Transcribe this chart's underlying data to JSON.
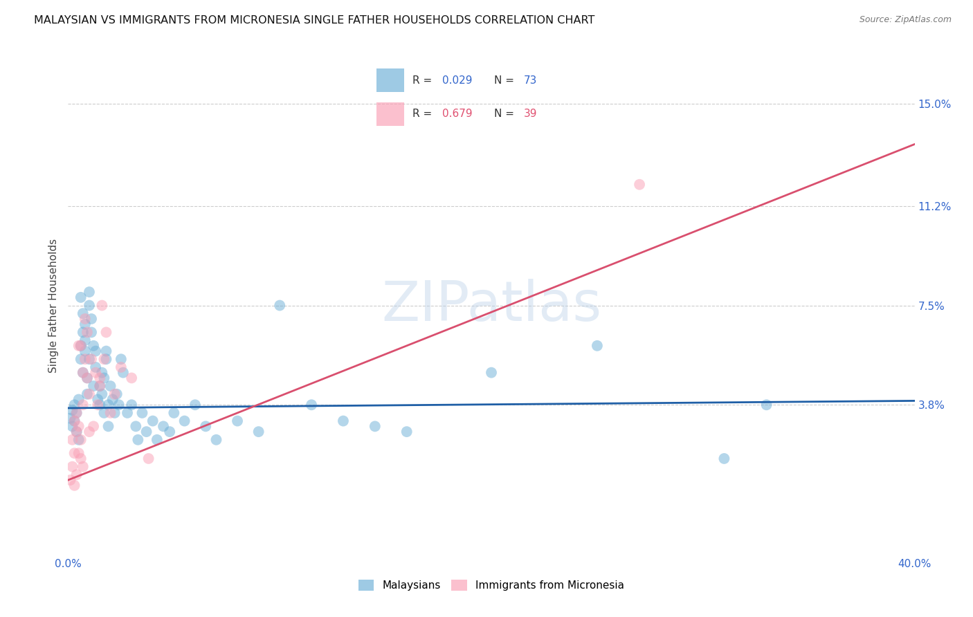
{
  "title": "MALAYSIAN VS IMMIGRANTS FROM MICRONESIA SINGLE FATHER HOUSEHOLDS CORRELATION CHART",
  "source": "Source: ZipAtlas.com",
  "ylabel": "Single Father Households",
  "ytick_labels": [
    "15.0%",
    "11.2%",
    "7.5%",
    "3.8%"
  ],
  "ytick_values": [
    0.15,
    0.112,
    0.075,
    0.038
  ],
  "xlim": [
    0.0,
    0.4
  ],
  "ylim": [
    -0.018,
    0.168
  ],
  "watermark": "ZIPatlas",
  "blue_color": "#6baed6",
  "pink_color": "#fa9fb5",
  "blue_line_color": "#1f5fa6",
  "pink_line_color": "#d94f6e",
  "blue_line_x": [
    0.0,
    0.4
  ],
  "blue_line_y": [
    0.0368,
    0.0395
  ],
  "pink_line_x": [
    0.0,
    0.4
  ],
  "pink_line_y": [
    0.01,
    0.135
  ],
  "blue_scatter": [
    [
      0.001,
      0.033
    ],
    [
      0.002,
      0.036
    ],
    [
      0.002,
      0.03
    ],
    [
      0.003,
      0.038
    ],
    [
      0.003,
      0.032
    ],
    [
      0.004,
      0.035
    ],
    [
      0.004,
      0.028
    ],
    [
      0.005,
      0.04
    ],
    [
      0.005,
      0.025
    ],
    [
      0.006,
      0.055
    ],
    [
      0.006,
      0.06
    ],
    [
      0.006,
      0.078
    ],
    [
      0.007,
      0.065
    ],
    [
      0.007,
      0.072
    ],
    [
      0.007,
      0.05
    ],
    [
      0.008,
      0.068
    ],
    [
      0.008,
      0.058
    ],
    [
      0.008,
      0.062
    ],
    [
      0.009,
      0.048
    ],
    [
      0.009,
      0.042
    ],
    [
      0.01,
      0.08
    ],
    [
      0.01,
      0.075
    ],
    [
      0.01,
      0.055
    ],
    [
      0.011,
      0.07
    ],
    [
      0.011,
      0.065
    ],
    [
      0.012,
      0.06
    ],
    [
      0.012,
      0.045
    ],
    [
      0.013,
      0.052
    ],
    [
      0.013,
      0.058
    ],
    [
      0.014,
      0.04
    ],
    [
      0.015,
      0.038
    ],
    [
      0.015,
      0.045
    ],
    [
      0.016,
      0.05
    ],
    [
      0.016,
      0.042
    ],
    [
      0.017,
      0.048
    ],
    [
      0.017,
      0.035
    ],
    [
      0.018,
      0.055
    ],
    [
      0.018,
      0.058
    ],
    [
      0.019,
      0.03
    ],
    [
      0.019,
      0.038
    ],
    [
      0.02,
      0.045
    ],
    [
      0.021,
      0.04
    ],
    [
      0.022,
      0.035
    ],
    [
      0.023,
      0.042
    ],
    [
      0.024,
      0.038
    ],
    [
      0.025,
      0.055
    ],
    [
      0.026,
      0.05
    ],
    [
      0.028,
      0.035
    ],
    [
      0.03,
      0.038
    ],
    [
      0.032,
      0.03
    ],
    [
      0.033,
      0.025
    ],
    [
      0.035,
      0.035
    ],
    [
      0.037,
      0.028
    ],
    [
      0.04,
      0.032
    ],
    [
      0.042,
      0.025
    ],
    [
      0.045,
      0.03
    ],
    [
      0.048,
      0.028
    ],
    [
      0.05,
      0.035
    ],
    [
      0.055,
      0.032
    ],
    [
      0.06,
      0.038
    ],
    [
      0.065,
      0.03
    ],
    [
      0.07,
      0.025
    ],
    [
      0.08,
      0.032
    ],
    [
      0.09,
      0.028
    ],
    [
      0.1,
      0.075
    ],
    [
      0.115,
      0.038
    ],
    [
      0.13,
      0.032
    ],
    [
      0.145,
      0.03
    ],
    [
      0.16,
      0.028
    ],
    [
      0.2,
      0.05
    ],
    [
      0.25,
      0.06
    ],
    [
      0.31,
      0.018
    ],
    [
      0.33,
      0.038
    ]
  ],
  "pink_scatter": [
    [
      0.001,
      0.01
    ],
    [
      0.002,
      0.015
    ],
    [
      0.002,
      0.025
    ],
    [
      0.003,
      0.02
    ],
    [
      0.003,
      0.032
    ],
    [
      0.003,
      0.008
    ],
    [
      0.004,
      0.028
    ],
    [
      0.004,
      0.035
    ],
    [
      0.004,
      0.012
    ],
    [
      0.005,
      0.03
    ],
    [
      0.005,
      0.02
    ],
    [
      0.005,
      0.06
    ],
    [
      0.006,
      0.06
    ],
    [
      0.006,
      0.025
    ],
    [
      0.006,
      0.018
    ],
    [
      0.007,
      0.038
    ],
    [
      0.007,
      0.05
    ],
    [
      0.007,
      0.015
    ],
    [
      0.008,
      0.055
    ],
    [
      0.008,
      0.07
    ],
    [
      0.009,
      0.065
    ],
    [
      0.009,
      0.048
    ],
    [
      0.01,
      0.028
    ],
    [
      0.01,
      0.042
    ],
    [
      0.011,
      0.055
    ],
    [
      0.012,
      0.03
    ],
    [
      0.013,
      0.05
    ],
    [
      0.014,
      0.038
    ],
    [
      0.015,
      0.045
    ],
    [
      0.015,
      0.048
    ],
    [
      0.016,
      0.075
    ],
    [
      0.017,
      0.055
    ],
    [
      0.018,
      0.065
    ],
    [
      0.02,
      0.035
    ],
    [
      0.022,
      0.042
    ],
    [
      0.025,
      0.052
    ],
    [
      0.03,
      0.048
    ],
    [
      0.038,
      0.018
    ],
    [
      0.27,
      0.12
    ]
  ],
  "legend_blue_r": "0.029",
  "legend_blue_n": "73",
  "legend_pink_r": "0.679",
  "legend_pink_n": "39",
  "legend_r_color_blue": "#3366cc",
  "legend_r_color_pink": "#e05070",
  "legend_n_color_blue": "#3366cc",
  "legend_n_color_pink": "#e05070"
}
